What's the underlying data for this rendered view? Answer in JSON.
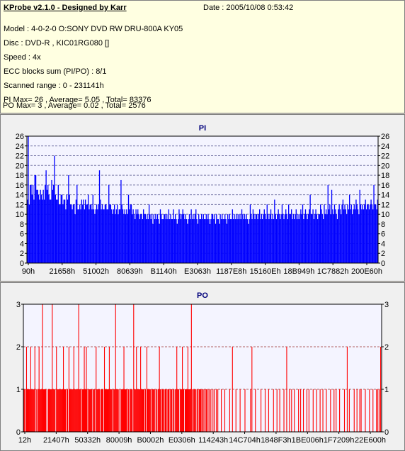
{
  "header": {
    "title": "KProbe v2.1.0 - Designed by Karr",
    "date": "Date : 2005/10/08 0:53:42",
    "lines": [
      "Model : 4-0-2-0 O:SONY    DVD RW DRU-800A  KY05",
      "Disc : DVD-R , KIC01RG080  []",
      "Speed : 4x",
      "ECC blocks sum (PI/PO) : 8/1",
      "Scanned range : 0 - 231141h",
      "PI Max= 26 , Average= 5.05 , Total= 83376",
      "PO Max= 3 , Average= 0.02 , Total= 2576"
    ]
  },
  "chart_data": [
    {
      "id": "pi",
      "type": "bar",
      "title": "PI",
      "color": "#0000ff",
      "background": "#f4f4ff",
      "gridline_color": "#7a7aa8",
      "grid": true,
      "ylim": [
        0,
        26
      ],
      "yticks": [
        0,
        2,
        4,
        6,
        8,
        10,
        12,
        14,
        16,
        18,
        20,
        22,
        24,
        26
      ],
      "xlim_hex": [
        "0",
        "231141"
      ],
      "xtick_labels": [
        "90h",
        "21658h",
        "51002h",
        "80639h",
        "B1140h",
        "E3063h",
        "1187E8h",
        "15160Eh",
        "18B949h",
        "1C7882h",
        "200E60h"
      ],
      "summary": {
        "max": 26,
        "average": 5.05,
        "total": 83376
      },
      "values": [
        13,
        26,
        12,
        16,
        16,
        14,
        16,
        13,
        18,
        18,
        15,
        15,
        14,
        13,
        15,
        14,
        13,
        15,
        13,
        16,
        19,
        15,
        16,
        14,
        13,
        13,
        17,
        15,
        16,
        22,
        14,
        13,
        13,
        16,
        12,
        12,
        14,
        14,
        12,
        13,
        13,
        11,
        14,
        13,
        18,
        14,
        12,
        12,
        11,
        12,
        12,
        10,
        13,
        16,
        11,
        11,
        12,
        11,
        13,
        12,
        13,
        11,
        13,
        12,
        12,
        14,
        11,
        12,
        12,
        11,
        14,
        11,
        10,
        11,
        12,
        11,
        12,
        19,
        13,
        11,
        12,
        11,
        11,
        12,
        12,
        11,
        11,
        16,
        12,
        12,
        11,
        10,
        11,
        12,
        10,
        11,
        12,
        10,
        11,
        11,
        17,
        12,
        11,
        10,
        11,
        10,
        11,
        10,
        14,
        11,
        12,
        12,
        10,
        11,
        10,
        9,
        11,
        10,
        11,
        10,
        9,
        10,
        10,
        9,
        11,
        10,
        10,
        9,
        10,
        9,
        12,
        10,
        9,
        10,
        8,
        10,
        9,
        10,
        9,
        10,
        9,
        8,
        11,
        10,
        9,
        9,
        10,
        10,
        9,
        10,
        9,
        11,
        9,
        10,
        9,
        9,
        11,
        9,
        10,
        9,
        8,
        9,
        11,
        10,
        9,
        10,
        11,
        10,
        9,
        10,
        9,
        8,
        9,
        10,
        9,
        11,
        9,
        10,
        9,
        10,
        11,
        9,
        8,
        10,
        9,
        9,
        10,
        9,
        10,
        9,
        9,
        10,
        9,
        10,
        9,
        8,
        9,
        10,
        10,
        9,
        10,
        8,
        10,
        9,
        9,
        8,
        10,
        9,
        10,
        9,
        9,
        10,
        9,
        8,
        10,
        9,
        10,
        9,
        9,
        11,
        9,
        10,
        9,
        10,
        9,
        10,
        9,
        10,
        9,
        11,
        10,
        9,
        10,
        9,
        10,
        9,
        8,
        9,
        12,
        10,
        9,
        11,
        10,
        9,
        10,
        10,
        9,
        10,
        11,
        9,
        10,
        9,
        10,
        11,
        10,
        9,
        12,
        10,
        9,
        10,
        11,
        9,
        10,
        9,
        13,
        10,
        9,
        10,
        11,
        10,
        9,
        10,
        12,
        10,
        9,
        10,
        11,
        10,
        9,
        12,
        10,
        10,
        11,
        9,
        10,
        9,
        10,
        11,
        9,
        10,
        9,
        10,
        11,
        10,
        12,
        9,
        10,
        11,
        10,
        9,
        10,
        11,
        14,
        10,
        10,
        11,
        9,
        10,
        11,
        10,
        9,
        10,
        10,
        12,
        11,
        10,
        9,
        12,
        10,
        11,
        10,
        16,
        11,
        12,
        10,
        15,
        11,
        10,
        12,
        11,
        10,
        9,
        11,
        12,
        11,
        10,
        12,
        13,
        11,
        12,
        11,
        10,
        12,
        11,
        14,
        11,
        12,
        10,
        11,
        12,
        11,
        13,
        12,
        11,
        10,
        15,
        12,
        11,
        12,
        11,
        12,
        13,
        11,
        12,
        12,
        11,
        12,
        13,
        12,
        11,
        16,
        12,
        12,
        11,
        13
      ]
    },
    {
      "id": "po",
      "type": "bar",
      "title": "PO",
      "color": "#ff0000",
      "background": "#f4f4ff",
      "gridline_color": "#b06060",
      "grid": true,
      "ylim": [
        0,
        3
      ],
      "yticks": [
        0,
        1,
        2,
        3
      ],
      "xlim_hex": [
        "0",
        "231141"
      ],
      "xtick_labels": [
        "12h",
        "21407h",
        "50332h",
        "80009h",
        "B0002h",
        "E0306h",
        "114243h",
        "14C704h",
        "1848F3h",
        "1BE006h",
        "1F7209h",
        "22E600h"
      ],
      "summary": {
        "max": 3,
        "average": 0.02,
        "total": 2576
      },
      "values": [
        1,
        1,
        0,
        1,
        2,
        1,
        1,
        1,
        1,
        1,
        2,
        1,
        1,
        1,
        1,
        1,
        2,
        0,
        1,
        0,
        1,
        1,
        2,
        1,
        1,
        1,
        1,
        3,
        1,
        1,
        1,
        1,
        1,
        0,
        0,
        1,
        1,
        1,
        1,
        1,
        1,
        3,
        1,
        1,
        1,
        1,
        0,
        2,
        1,
        1,
        1,
        1,
        1,
        1,
        1,
        1,
        1,
        2,
        1,
        1,
        1,
        0,
        1,
        1,
        0,
        2,
        1,
        1,
        1,
        1,
        1,
        1,
        2,
        1,
        1,
        1,
        1,
        1,
        1,
        3,
        1,
        1,
        1,
        0,
        1,
        1,
        1,
        2,
        1,
        1,
        2,
        1,
        0,
        1,
        1,
        1,
        1,
        1,
        1,
        0,
        1,
        1,
        1,
        0,
        2,
        1,
        1,
        1,
        1,
        1,
        0,
        1,
        1,
        1,
        1,
        0,
        2,
        1,
        1,
        1,
        1,
        1,
        1,
        2,
        1,
        1,
        1,
        1,
        0,
        1,
        1,
        1,
        3,
        1,
        1,
        1,
        1,
        0,
        1,
        0,
        1,
        1,
        1,
        1,
        2,
        1,
        1,
        1,
        1,
        0,
        1,
        1,
        0,
        1,
        1,
        1,
        1,
        0,
        3,
        1,
        1,
        1,
        2,
        1,
        1,
        1,
        1,
        1,
        2,
        1,
        1,
        1,
        1,
        1,
        0,
        1,
        0,
        2,
        1,
        1,
        1,
        1,
        1,
        0,
        1,
        1,
        1,
        1,
        1,
        0,
        1,
        1,
        0,
        1,
        1,
        2,
        1,
        1,
        0,
        1,
        1,
        1,
        0,
        1,
        1,
        1,
        0,
        1,
        1,
        1,
        0,
        1,
        1,
        1,
        0,
        1,
        1,
        0,
        1,
        1,
        2,
        1,
        1,
        1,
        0,
        1,
        1,
        1,
        2,
        1,
        1,
        0,
        1,
        1,
        1,
        1,
        2,
        1,
        1,
        1,
        1,
        3,
        1,
        0,
        1,
        1,
        1,
        1,
        0,
        1,
        1,
        0,
        1,
        1,
        1,
        1,
        0,
        1,
        1,
        0,
        1,
        0,
        1,
        1,
        0,
        1,
        0,
        1,
        0,
        1,
        0,
        0,
        1,
        0,
        1,
        0,
        0,
        1,
        0,
        1,
        0,
        0,
        0,
        0,
        1,
        0,
        0,
        0,
        0,
        1,
        0,
        0,
        0,
        0,
        0,
        0,
        1,
        0,
        0,
        0,
        2,
        0,
        0,
        0,
        0,
        1,
        0,
        0,
        0,
        0,
        0,
        1,
        0,
        0,
        0,
        0,
        0,
        0,
        1,
        0,
        0,
        0,
        0,
        0,
        0,
        0,
        1,
        0,
        2,
        0,
        0,
        0,
        0,
        1,
        0,
        0,
        0,
        0,
        0,
        0,
        0,
        1,
        0,
        0,
        0,
        0,
        0,
        1,
        0,
        0,
        0,
        0,
        1,
        0,
        0,
        0,
        0,
        0,
        0,
        1,
        0,
        0,
        0,
        0,
        1,
        0,
        0,
        0,
        1,
        0,
        0,
        0,
        0,
        0,
        1,
        0,
        0,
        0,
        2,
        0,
        0,
        0,
        1,
        0,
        0,
        1,
        0,
        0,
        0,
        1,
        0,
        0,
        0,
        0,
        0,
        1,
        0,
        0,
        1,
        0,
        0,
        0,
        1,
        0,
        0,
        0,
        0,
        1,
        0,
        0,
        1,
        0,
        0,
        0,
        0,
        0,
        1,
        0,
        0,
        0,
        0,
        1,
        0,
        0,
        0,
        0,
        1,
        0,
        0,
        0,
        1,
        0,
        0,
        0,
        0,
        1,
        0,
        0,
        0,
        0,
        0,
        1,
        0,
        0,
        0,
        0,
        1,
        0,
        0,
        1,
        0,
        0,
        0,
        0,
        1,
        0,
        0,
        0,
        0,
        0,
        0,
        1,
        0,
        0,
        0,
        2,
        0,
        0,
        1,
        0,
        0,
        0,
        0,
        0,
        0,
        1,
        0,
        0,
        0,
        1,
        0,
        0,
        0,
        1,
        0,
        1,
        0,
        0,
        0,
        0,
        0,
        1,
        0,
        0,
        0,
        0,
        0,
        1,
        0,
        0,
        0,
        0,
        1,
        0,
        0,
        0,
        0,
        1,
        0,
        1,
        0,
        1,
        0,
        2,
        0
      ]
    }
  ]
}
